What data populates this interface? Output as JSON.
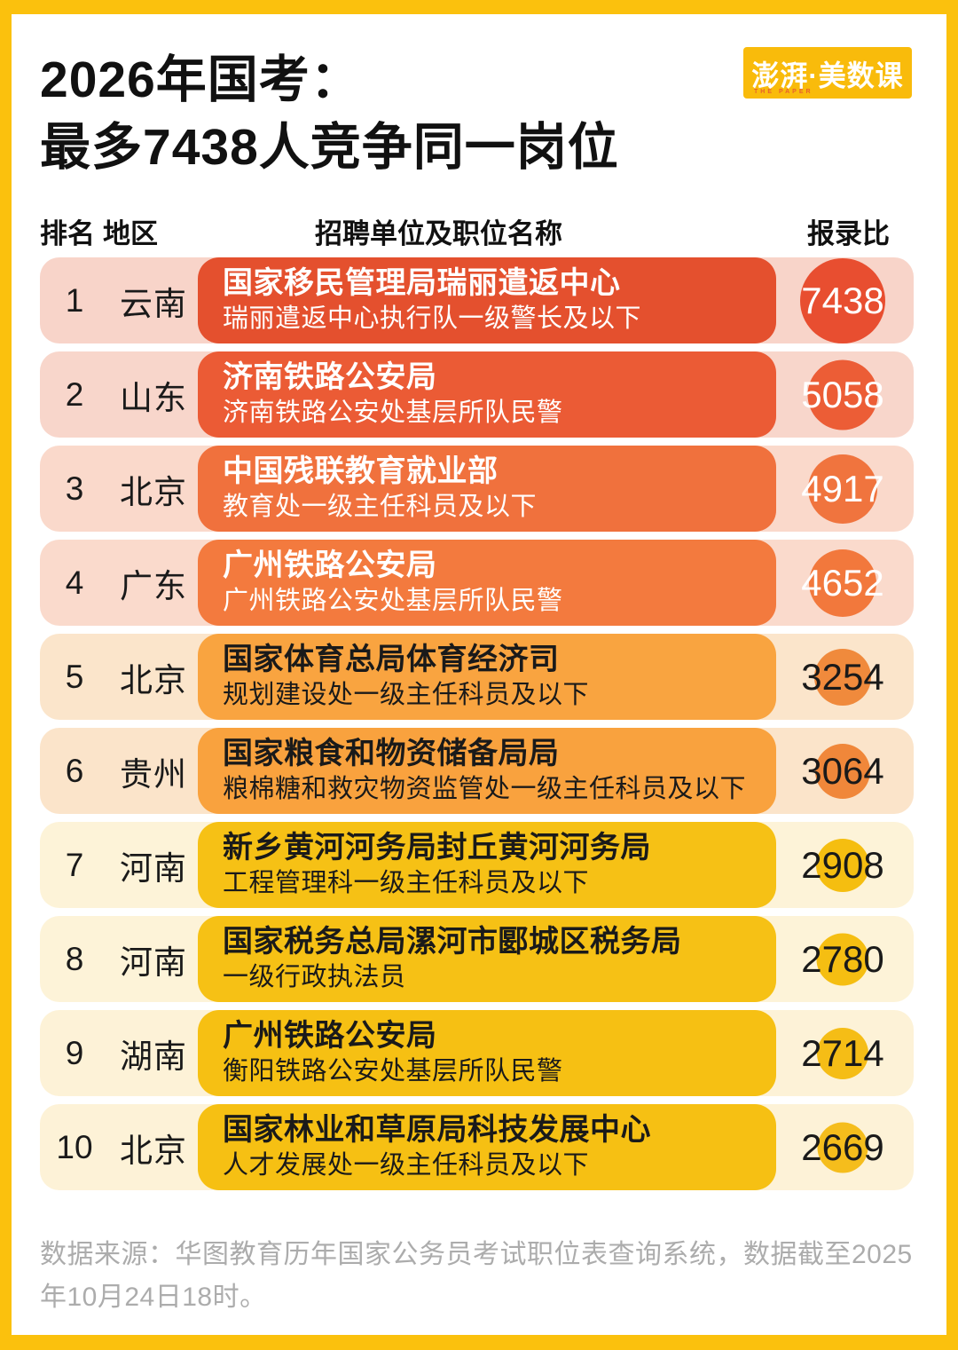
{
  "title": {
    "line1": "2026年国考：",
    "line2": "最多7438人竞争同一岗位"
  },
  "logo": {
    "text": "澎湃·美数课",
    "subtext": "THE PAPER",
    "bg_color": "#F9BB0B"
  },
  "headers": {
    "rank": "排名",
    "region": "地区",
    "position": "招聘单位及职位名称",
    "ratio": "报录比"
  },
  "rows": [
    {
      "rank": "1",
      "region": "云南",
      "org": "国家移民管理局瑞丽遣返中心",
      "job": "瑞丽遣返中心执行队一级警长及以下",
      "value": "7438",
      "row_bg": "#F8D4C9",
      "card_bg": "#E4502E",
      "circle_bg": "#E84E30",
      "text_color": "#FFFFFF",
      "diameter": 96
    },
    {
      "rank": "2",
      "region": "山东",
      "org": "济南铁路公安局",
      "job": "济南铁路公安处基层所队民警",
      "value": "5058",
      "row_bg": "#F8D6CB",
      "card_bg": "#EB5B35",
      "circle_bg": "#EC5D36",
      "text_color": "#FFFFFF",
      "diameter": 79
    },
    {
      "rank": "3",
      "region": "北京",
      "org": "中国残联教育就业部",
      "job": "教育处一级主任科员及以下",
      "value": "4917",
      "row_bg": "#FAD9CB",
      "card_bg": "#F0713D",
      "circle_bg": "#F0743E",
      "text_color": "#FFFFFF",
      "diameter": 78
    },
    {
      "rank": "4",
      "region": "广东",
      "org": "广州铁路公安局",
      "job": "广州铁路公安处基层所队民警",
      "value": "4652",
      "row_bg": "#FADACC",
      "card_bg": "#F37A3E",
      "circle_bg": "#F2783C",
      "text_color": "#FFFFFF",
      "diameter": 76
    },
    {
      "rank": "5",
      "region": "北京",
      "org": "国家体育总局体育经济司",
      "job": "规划建设处一级主任科员及以下",
      "value": "3254",
      "row_bg": "#FBE5CB",
      "card_bg": "#F9A440",
      "circle_bg": "#F08A3C",
      "text_color": "#1A1A1A",
      "diameter": 64
    },
    {
      "rank": "6",
      "region": "贵州",
      "org": "国家粮食和物资储备局局",
      "job": "粮棉糖和救灾物资监管处一级主任科员及以下",
      "value": "3064",
      "row_bg": "#FBE4CA",
      "card_bg": "#F9A23E",
      "circle_bg": "#F0873A",
      "text_color": "#1A1A1A",
      "diameter": 62
    },
    {
      "rank": "7",
      "region": "河南",
      "org": "新乡黄河河务局封丘黄河河务局",
      "job": "工程管理科一级主任科员及以下",
      "value": "2908",
      "row_bg": "#FDF3D8",
      "card_bg": "#F6C115",
      "circle_bg": "#F5BE10",
      "text_color": "#1A1A1A",
      "diameter": 60
    },
    {
      "rank": "8",
      "region": "河南",
      "org": "国家税务总局漯河市郾城区税务局",
      "job": "一级行政执法员",
      "value": "2780",
      "row_bg": "#FDF3D8",
      "card_bg": "#F6C115",
      "circle_bg": "#F5BE12",
      "text_color": "#1A1A1A",
      "diameter": 59
    },
    {
      "rank": "9",
      "region": "湖南",
      "org": "广州铁路公安局",
      "job": "衡阳铁路公安处基层所队民警",
      "value": "2714",
      "row_bg": "#FDF2D7",
      "card_bg": "#F6C013",
      "circle_bg": "#F5BD16",
      "text_color": "#1A1A1A",
      "diameter": 58
    },
    {
      "rank": "10",
      "region": "北京",
      "org": "国家林业和草原局科技发展中心",
      "job": "人才发展处一级主任科员及以下",
      "value": "2669",
      "row_bg": "#FDF2D7",
      "card_bg": "#F6C013",
      "circle_bg": "#F5BD1C",
      "text_color": "#1A1A1A",
      "diameter": 57
    }
  ],
  "footer": {
    "source": "数据来源：华图教育历年国家公务员考试职位表查询系统，数据截至2025年10月24日18时。"
  },
  "colors": {
    "frame": "#FBC10D",
    "panel": "#FFFFFF",
    "title_text": "#111111",
    "footer_text": "#ACACAC"
  },
  "chart_data": {
    "type": "table",
    "title": "2026年国考：最多7438人竞争同一岗位",
    "columns": [
      "排名",
      "地区",
      "招聘单位及职位名称",
      "报录比"
    ],
    "rows": [
      [
        1,
        "云南",
        "国家移民管理局瑞丽遣返中心 — 瑞丽遣返中心执行队一级警长及以下",
        7438
      ],
      [
        2,
        "山东",
        "济南铁路公安局 — 济南铁路公安处基层所队民警",
        5058
      ],
      [
        3,
        "北京",
        "中国残联教育就业部 — 教育处一级主任科员及以下",
        4917
      ],
      [
        4,
        "广东",
        "广州铁路公安局 — 广州铁路公安处基层所队民警",
        4652
      ],
      [
        5,
        "北京",
        "国家体育总局体育经济司 — 规划建设处一级主任科员及以下",
        3254
      ],
      [
        6,
        "贵州",
        "国家粮食和物资储备局局 — 粮棉糖和救灾物资监管处一级主任科员及以下",
        3064
      ],
      [
        7,
        "河南",
        "新乡黄河河务局封丘黄河河务局 — 工程管理科一级主任科员及以下",
        2908
      ],
      [
        8,
        "河南",
        "国家税务总局漯河市郾城区税务局 — 一级行政执法员",
        2780
      ],
      [
        9,
        "湖南",
        "广州铁路公安局 — 衡阳铁路公安处基层所队民警",
        2714
      ],
      [
        10,
        "北京",
        "国家林业和草原局科技发展中心 — 人才发展处一级主任科员及以下",
        2669
      ]
    ],
    "value_encoding": "报录比同时用圆面积编码（圆直径随数值缩放），颜色由红(高)渐变到黄(低)",
    "legend_position": "none",
    "grid": false
  }
}
